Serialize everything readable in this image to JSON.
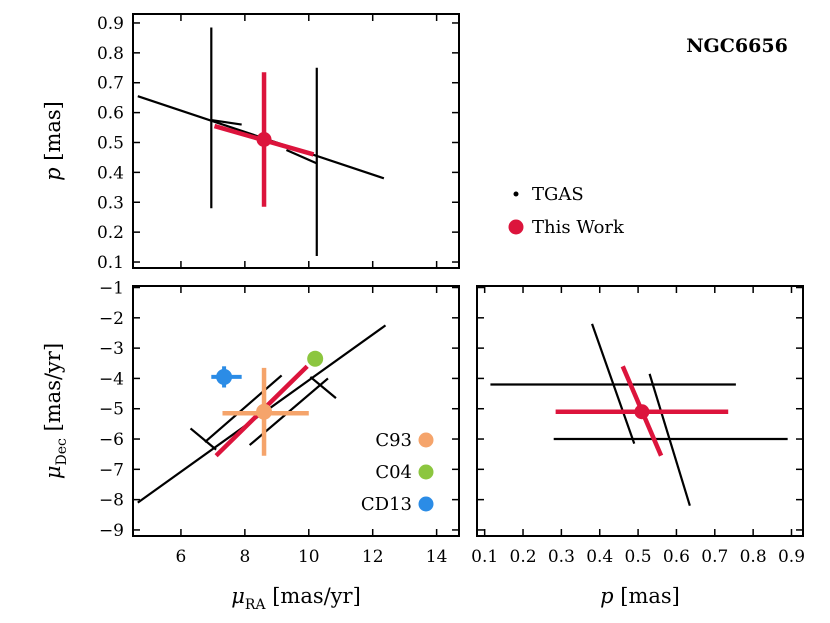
{
  "chart_data": {
    "type": "scatter",
    "title": "NGC6656",
    "legend": {
      "placement": "right-middle",
      "entries": [
        {
          "label": "TGAS",
          "color": "#000000"
        },
        {
          "label": "This Work",
          "color": "#dc143c"
        }
      ]
    },
    "colors": {
      "tgas": "#000000",
      "this_work": "#dc143c",
      "C93": "#f5a46b",
      "C04": "#8cc63f",
      "CD13": "#2b8ce6"
    },
    "panels": {
      "top_left": {
        "xlabel": "",
        "ylabel": "p [mas]",
        "xlim": [
          4.5,
          14.7
        ],
        "ylim": [
          0.08,
          0.93
        ],
        "xticks": [
          6,
          8,
          10,
          12,
          14
        ],
        "yticks": [
          0.1,
          0.2,
          0.3,
          0.4,
          0.5,
          0.6,
          0.7,
          0.8,
          0.9
        ],
        "ytick_labels": [
          "0.1",
          "0.2",
          "0.3",
          "0.4",
          "0.5",
          "0.6",
          "0.7",
          "0.8",
          "0.9"
        ],
        "segments": [
          {
            "series": "TGAS",
            "x": [
              4.65,
              12.35
            ],
            "y": [
              0.655,
              0.38
            ]
          },
          {
            "series": "TGAS",
            "x": [
              6.95,
              6.95
            ],
            "y": [
              0.28,
              0.885
            ]
          },
          {
            "series": "TGAS",
            "x": [
              10.25,
              10.25
            ],
            "y": [
              0.12,
              0.75
            ]
          },
          {
            "series": "TGAS",
            "x": [
              6.95,
              7.9
            ],
            "y": [
              0.575,
              0.56
            ]
          },
          {
            "series": "TGAS",
            "x": [
              9.3,
              10.25
            ],
            "y": [
              0.475,
              0.43
            ]
          },
          {
            "series": "This Work",
            "x": [
              8.6,
              8.6
            ],
            "y": [
              0.285,
              0.735
            ]
          },
          {
            "series": "This Work",
            "x": [
              7.05,
              10.15
            ],
            "y": [
              0.555,
              0.46
            ]
          }
        ],
        "points": [
          {
            "series": "This Work",
            "x": 8.6,
            "y": 0.51
          }
        ]
      },
      "bottom_left": {
        "xlabel": "μRA [mas/yr]",
        "ylabel": "μDec [mas/yr]",
        "xlim": [
          4.5,
          14.7
        ],
        "ylim": [
          -9.2,
          -0.95
        ],
        "xticks": [
          6,
          8,
          10,
          12,
          14
        ],
        "xtick_labels": [
          "6",
          "8",
          "10",
          "12",
          "14"
        ],
        "yticks": [
          -9,
          -8,
          -7,
          -6,
          -5,
          -4,
          -3,
          -2,
          -1
        ],
        "ytick_labels": [
          "−9",
          "−8",
          "−7",
          "−6",
          "−5",
          "−4",
          "−3",
          "−2",
          "−1"
        ],
        "segments": [
          {
            "series": "TGAS",
            "x": [
              4.65,
              12.4
            ],
            "y": [
              -8.1,
              -2.25
            ]
          },
          {
            "series": "TGAS",
            "x": [
              6.75,
              9.15
            ],
            "y": [
              -6.1,
              -3.9
            ]
          },
          {
            "series": "TGAS",
            "x": [
              8.15,
              10.6
            ],
            "y": [
              -6.2,
              -4.0
            ]
          },
          {
            "series": "TGAS",
            "x": [
              6.3,
              7.1
            ],
            "y": [
              -5.65,
              -6.35
            ]
          },
          {
            "series": "TGAS",
            "x": [
              10.05,
              10.85
            ],
            "y": [
              -3.95,
              -4.65
            ]
          },
          {
            "series": "This Work",
            "x": [
              7.1,
              9.95
            ],
            "y": [
              -6.55,
              -3.6
            ]
          },
          {
            "series": "C93",
            "x": [
              8.6,
              8.6
            ],
            "y": [
              -6.55,
              -3.65
            ]
          },
          {
            "series": "C93",
            "x": [
              7.3,
              10.0
            ],
            "y": [
              -5.15,
              -5.15
            ]
          },
          {
            "series": "CD13",
            "x": [
              6.95,
              7.9
            ],
            "y": [
              -3.95,
              -3.95
            ]
          },
          {
            "series": "CD13",
            "x": [
              7.35,
              7.35
            ],
            "y": [
              -3.6,
              -4.3
            ]
          }
        ],
        "points": [
          {
            "series": "C93",
            "x": 8.6,
            "y": -5.1
          },
          {
            "series": "C04",
            "x": 10.2,
            "y": -3.35
          },
          {
            "series": "CD13",
            "x": 7.35,
            "y": -3.95
          }
        ],
        "legend": [
          {
            "label": "C93",
            "color": "#f5a46b"
          },
          {
            "label": "C04",
            "color": "#8cc63f"
          },
          {
            "label": "CD13",
            "color": "#2b8ce6"
          }
        ]
      },
      "bottom_right": {
        "xlabel": "p [mas]",
        "ylabel": "",
        "xlim": [
          0.08,
          0.93
        ],
        "ylim": [
          -9.2,
          -0.95
        ],
        "xticks": [
          0.1,
          0.2,
          0.3,
          0.4,
          0.5,
          0.6,
          0.7,
          0.8,
          0.9
        ],
        "xtick_labels": [
          "0.1",
          "0.2",
          "0.3",
          "0.4",
          "0.5",
          "0.6",
          "0.7",
          "0.8",
          "0.9"
        ],
        "yticks": [
          -9,
          -8,
          -7,
          -6,
          -5,
          -4,
          -3,
          -2,
          -1
        ],
        "segments": [
          {
            "series": "TGAS",
            "x": [
              0.115,
              0.755
            ],
            "y": [
              -4.2,
              -4.2
            ]
          },
          {
            "series": "TGAS",
            "x": [
              0.28,
              0.89
            ],
            "y": [
              -6.0,
              -6.0
            ]
          },
          {
            "series": "TGAS",
            "x": [
              0.38,
              0.49
            ],
            "y": [
              -2.2,
              -6.15
            ]
          },
          {
            "series": "TGAS",
            "x": [
              0.53,
              0.635
            ],
            "y": [
              -3.85,
              -8.2
            ]
          },
          {
            "series": "This Work",
            "x": [
              0.285,
              0.735
            ],
            "y": [
              -5.1,
              -5.1
            ]
          },
          {
            "series": "This Work",
            "x": [
              0.46,
              0.56
            ],
            "y": [
              -3.6,
              -6.55
            ]
          }
        ],
        "points": [
          {
            "series": "This Work",
            "x": 0.51,
            "y": -5.1
          }
        ]
      }
    }
  }
}
